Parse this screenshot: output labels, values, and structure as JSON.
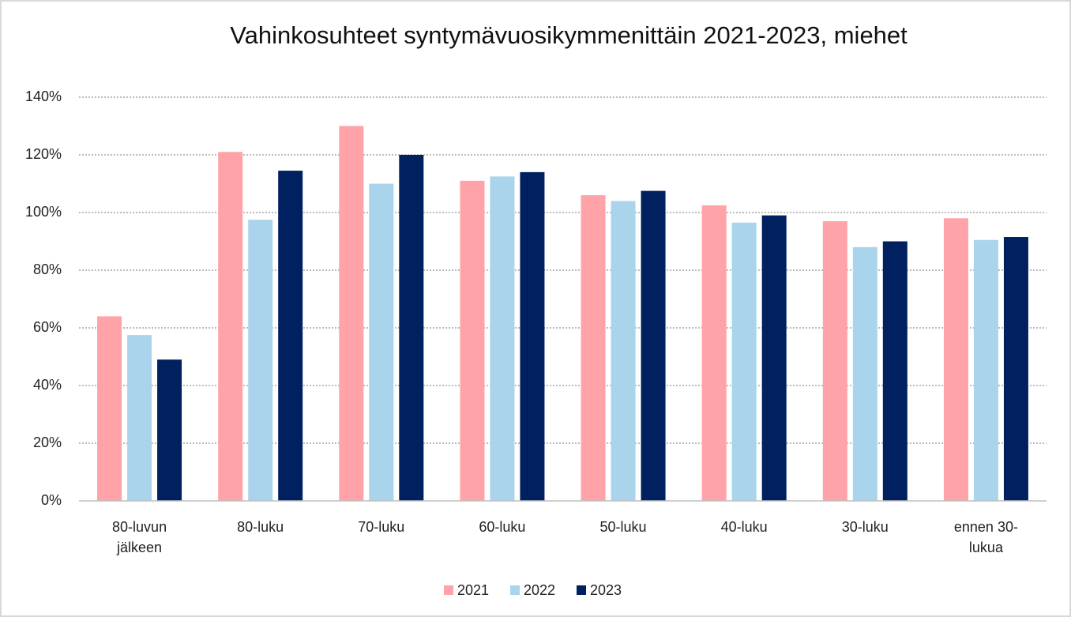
{
  "chart_data": {
    "type": "bar",
    "title": "Vahinkosuhteet syntymävuosikymmenittäin 2021-2023, miehet",
    "categories": [
      "80-luvun jälkeen",
      "80-luku",
      "70-luku",
      "60-luku",
      "50-luku",
      "40-luku",
      "30-luku",
      "ennen 30-lukua"
    ],
    "series": [
      {
        "name": "2021",
        "color": "#ffa3a8",
        "values": [
          64,
          121,
          130,
          111,
          106,
          102.5,
          97,
          98
        ]
      },
      {
        "name": "2022",
        "color": "#aad4ec",
        "values": [
          57.5,
          97.5,
          110,
          112.5,
          104,
          96.5,
          88,
          90.5
        ]
      },
      {
        "name": "2023",
        "color": "#002060",
        "values": [
          49,
          114.5,
          120,
          114,
          107.5,
          99,
          90,
          91.5
        ]
      }
    ],
    "ylim": [
      0,
      140
    ],
    "yticks": [
      {
        "value": 0,
        "label": "0%"
      },
      {
        "value": 20,
        "label": "20%"
      },
      {
        "value": 40,
        "label": "40%"
      },
      {
        "value": 60,
        "label": "60%"
      },
      {
        "value": 80,
        "label": "80%"
      },
      {
        "value": 100,
        "label": "100%"
      },
      {
        "value": 120,
        "label": "120%"
      },
      {
        "value": 140,
        "label": "140%"
      }
    ],
    "grid": true,
    "legend": "bottom"
  }
}
